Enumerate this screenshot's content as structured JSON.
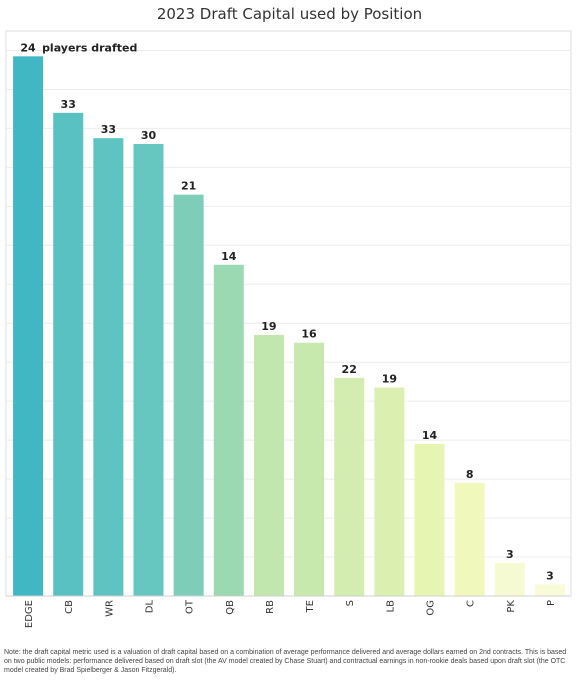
{
  "chart_data": {
    "type": "bar",
    "title": "2023 Draft Capital used by Position",
    "categories": [
      "EDGE",
      "CB",
      "WR",
      "DL",
      "OT",
      "QB",
      "RB",
      "TE",
      "S",
      "LB",
      "OG",
      "C",
      "PK",
      "P"
    ],
    "values": [
      27.7,
      24.8,
      23.5,
      23.2,
      20.6,
      17.0,
      13.4,
      13.0,
      11.2,
      10.7,
      7.8,
      5.8,
      1.7,
      0.6
    ],
    "data_labels": [
      "24",
      "33",
      "33",
      "30",
      "21",
      "14",
      "19",
      "16",
      "22",
      "19",
      "14",
      "8",
      "3",
      "3"
    ],
    "annotation": "players drafted",
    "bar_colors": [
      "#42b7c4",
      "#59c1c2",
      "#5fc3c2",
      "#66c6c0",
      "#7dcdb9",
      "#9ad9b1",
      "#c2e7ae",
      "#c8e9ad",
      "#d3edb0",
      "#dbf0b0",
      "#e6f5b2",
      "#f0f8bb",
      "#f6fad2",
      "#f8fbd8"
    ],
    "ylim": [
      0,
      29
    ],
    "grid": true,
    "legend": "none"
  },
  "note": "Note: the draft capital metric used is a valuation of draft capital based on a combination of average performance delivered and average dollars earned on 2nd contracts.  This is based on two public models:  performance delivered based on draft slot (the AV model created by Chase Stuart) and contractual earnings in non-rookie deals based upon draft slot (the OTC model created by Brad Spielberger & Jason Fitzgerald)."
}
